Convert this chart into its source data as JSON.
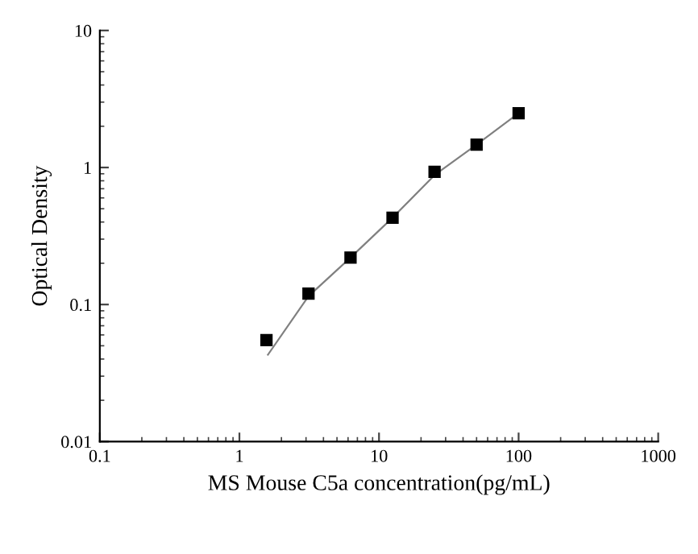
{
  "chart_data": {
    "type": "scatter",
    "xlabel": "MS Mouse C5a concentration(pg/mL)",
    "ylabel": "Optical Density",
    "log": "xy",
    "xlim": [
      0.1,
      1000
    ],
    "xticks": [
      0.1,
      1,
      10,
      100,
      1000
    ],
    "ylim": [
      0.01,
      10
    ],
    "yticks": [
      0.01,
      0.1,
      1,
      10
    ],
    "grid": false,
    "series": [
      {
        "marker": "square",
        "color": "#000000",
        "x": [
          1.5625,
          3.125,
          6.25,
          12.5,
          25,
          50,
          100
        ],
        "values": [
          0.055,
          0.12,
          0.22,
          0.43,
          0.93,
          1.47,
          2.49
        ]
      },
      {
        "type": "line",
        "marker": "none",
        "color": "#808080",
        "x": [
          1.6,
          3.125,
          6.25,
          12.5,
          25,
          50,
          100
        ],
        "values": [
          0.043,
          0.115,
          0.22,
          0.43,
          0.88,
          1.47,
          2.49
        ]
      }
    ]
  }
}
